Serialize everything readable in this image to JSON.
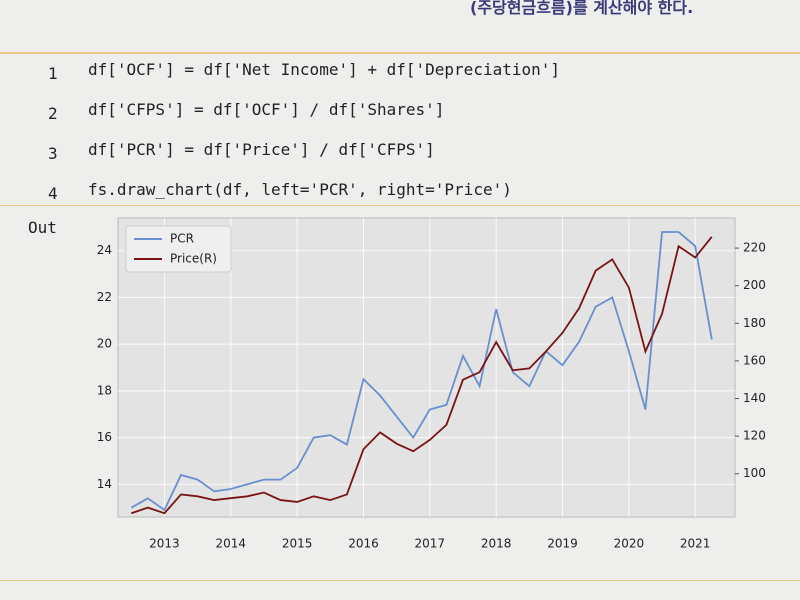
{
  "header_text": "(주당현금흐름)를 계산해야 한다.",
  "code": {
    "lines": [
      {
        "number": "1",
        "text": "df['OCF'] = df['Net Income'] + df['Depreciation']"
      },
      {
        "number": "2",
        "text": "df['CFPS'] = df['OCF'] / df['Shares']"
      },
      {
        "number": "3",
        "text": "df['PCR'] = df['Price'] / df['CFPS']"
      },
      {
        "number": "4",
        "text": "fs.draw_chart(df, left='PCR', right='Price')"
      }
    ]
  },
  "out_label": "Out",
  "chart_data": {
    "type": "line",
    "x": [
      2012.5,
      2012.75,
      2013,
      2013.25,
      2013.5,
      2013.75,
      2014,
      2014.25,
      2014.5,
      2014.75,
      2015,
      2015.25,
      2015.5,
      2015.75,
      2016,
      2016.25,
      2016.5,
      2016.75,
      2017,
      2017.25,
      2017.5,
      2017.75,
      2018,
      2018.25,
      2018.5,
      2018.75,
      2019,
      2019.25,
      2019.5,
      2019.75,
      2020,
      2020.25,
      2020.5,
      2020.75,
      2021,
      2021.25
    ],
    "series": [
      {
        "name": "PCR",
        "color": "#6a8fcf",
        "values": [
          13.0,
          13.4,
          12.9,
          14.4,
          14.2,
          13.7,
          13.8,
          14.0,
          14.2,
          14.2,
          14.7,
          16.0,
          16.1,
          15.7,
          18.5,
          17.8,
          16.9,
          16.0,
          17.2,
          17.4,
          19.5,
          18.2,
          21.5,
          18.8,
          18.2,
          19.7,
          19.1,
          20.1,
          21.6,
          22.0,
          19.7,
          17.2,
          24.8,
          24.8,
          24.2,
          20.2
        ]
      },
      {
        "name": "Price(R)",
        "color": "#7a1414",
        "axis": "y2",
        "values": [
          79,
          82,
          79,
          89,
          88,
          86,
          87,
          88,
          90,
          86,
          85,
          88,
          86,
          89,
          113,
          122,
          116,
          112,
          118,
          126,
          150,
          154,
          170,
          155,
          156,
          165,
          175,
          188,
          208,
          214,
          199,
          165,
          185,
          221,
          215,
          226
        ]
      }
    ],
    "xlim": [
      2012.3,
      2021.6
    ],
    "xticks": [
      2013,
      2014,
      2015,
      2016,
      2017,
      2018,
      2019,
      2020,
      2021
    ],
    "ylim": [
      12.6,
      25.4
    ],
    "yticks": [
      14,
      16,
      18,
      20,
      22,
      24
    ],
    "y2lim": [
      77,
      236
    ],
    "y2ticks": [
      100,
      120,
      140,
      160,
      180,
      200,
      220
    ],
    "grid": true,
    "legend": "upper-left"
  }
}
